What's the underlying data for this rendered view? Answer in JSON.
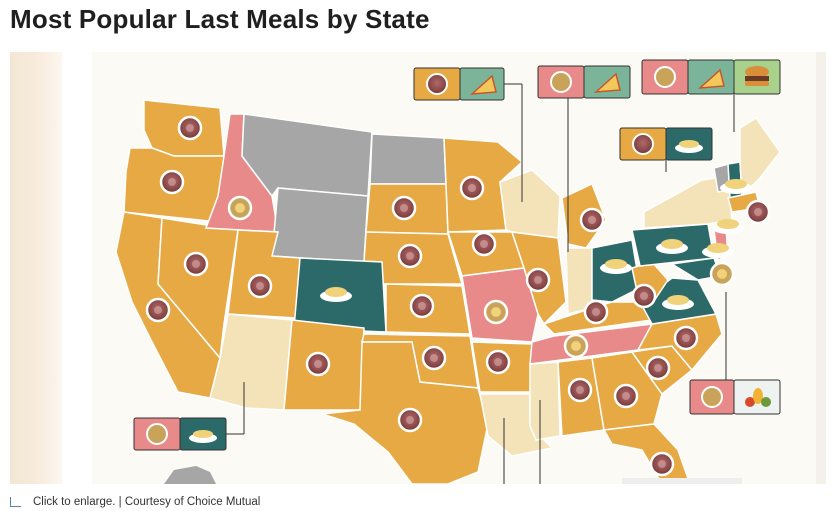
{
  "page": {
    "title": "Most Popular Last Meals by State"
  },
  "caption": {
    "text": "Click to enlarge. | Courtesy of Choice Mutual"
  },
  "legend_colors": {
    "steak": "#e8a93e",
    "chicken": "#e8888a",
    "pizza": "#7cb49a",
    "seafood": "#2c6a69",
    "burger": "#a8d18c",
    "fried_chicken": "#f4e3b8",
    "no_data": "#a6a6a6",
    "fruit": "#eef3f1"
  },
  "map": {
    "icons": [
      "steak-icon",
      "fried-chicken-icon",
      "pizza-icon",
      "burger-icon",
      "seafood-pasta-icon",
      "fruit-icon"
    ]
  }
}
